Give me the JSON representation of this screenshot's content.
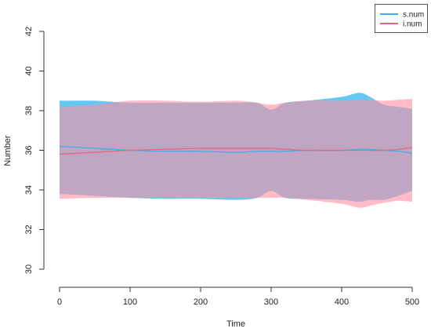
{
  "chart_data": {
    "type": "area",
    "xlabel": "Time",
    "ylabel": "Number",
    "xlim": [
      0,
      500
    ],
    "ylim": [
      30,
      42
    ],
    "x_ticks": [
      0,
      100,
      200,
      300,
      400,
      500
    ],
    "y_ticks": [
      30,
      32,
      34,
      36,
      38,
      40,
      42
    ],
    "legend_position": "top-right",
    "grid": false,
    "series": [
      {
        "name": "s.num",
        "color": "#3daee9",
        "band_color": "#5bc5f2",
        "x": [
          0,
          50,
          100,
          150,
          200,
          250,
          280,
          300,
          320,
          350,
          400,
          425,
          440,
          460,
          480,
          500
        ],
        "mean": [
          36.2,
          36.1,
          36.0,
          35.95,
          35.95,
          35.9,
          35.95,
          35.95,
          35.95,
          36.0,
          36.0,
          36.05,
          36.05,
          36.0,
          35.95,
          35.85
        ],
        "upper": [
          38.5,
          38.5,
          38.4,
          38.4,
          38.4,
          38.4,
          38.4,
          38.05,
          38.4,
          38.5,
          38.7,
          38.9,
          38.7,
          38.3,
          38.2,
          38.1
        ],
        "lower": [
          33.8,
          33.7,
          33.6,
          33.55,
          33.55,
          33.5,
          33.6,
          33.95,
          33.6,
          33.55,
          33.5,
          33.4,
          33.5,
          33.5,
          33.7,
          33.95
        ]
      },
      {
        "name": "i.num",
        "color": "#e8657a",
        "band_color": "#ff8fa3",
        "x": [
          0,
          50,
          100,
          150,
          200,
          250,
          280,
          300,
          320,
          350,
          400,
          425,
          440,
          460,
          480,
          500
        ],
        "mean": [
          35.8,
          35.9,
          36.0,
          36.05,
          36.1,
          36.1,
          36.1,
          36.1,
          36.05,
          36.0,
          36.0,
          36.0,
          36.0,
          36.0,
          36.05,
          36.15
        ],
        "upper": [
          38.2,
          38.3,
          38.5,
          38.5,
          38.45,
          38.5,
          38.4,
          38.3,
          38.4,
          38.5,
          38.5,
          38.55,
          38.55,
          38.5,
          38.55,
          38.6
        ],
        "lower": [
          33.55,
          33.6,
          33.6,
          33.6,
          33.6,
          33.6,
          33.6,
          33.6,
          33.6,
          33.5,
          33.3,
          33.1,
          33.2,
          33.35,
          33.45,
          33.4
        ]
      }
    ]
  }
}
